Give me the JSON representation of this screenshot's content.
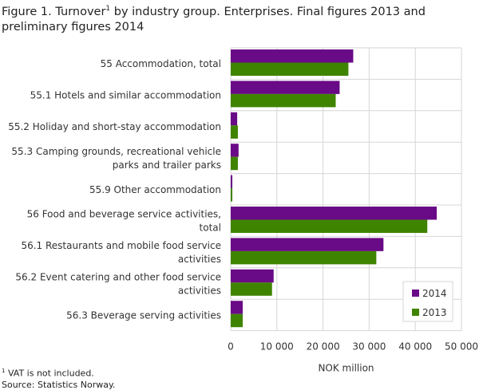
{
  "title_pre": "Figure 1. Turnover",
  "title_sup": "1",
  "title_post": " by industry group. Enterprises. Final figures 2013 and preliminary figures 2014",
  "footnote_sup": "1",
  "footnote": " VAT is not included.",
  "source": "Source: Statistics Norway.",
  "chart_data": {
    "type": "bar",
    "orientation": "horizontal",
    "title": "Figure 1. Turnover1 by industry group. Enterprises. Final figures 2013 and preliminary figures 2014",
    "xlabel": "NOK million",
    "xlim": [
      0,
      50000
    ],
    "xticks": [
      0,
      10000,
      20000,
      30000,
      40000,
      50000
    ],
    "xtick_labels": [
      "0",
      "10 000",
      "20 000",
      "30 000",
      "40 000",
      "50 000"
    ],
    "grid": true,
    "legend_position": "bottom-right",
    "categories": [
      [
        "55 Accommodation, total"
      ],
      [
        "55.1 Hotels and similar accommodation"
      ],
      [
        "55.2 Holiday and short-stay accommodation"
      ],
      [
        "55.3 Camping grounds, recreational vehicle",
        "parks and trailer parks"
      ],
      [
        "55.9 Other accommodation"
      ],
      [
        "56 Food and beverage service activities,",
        "total"
      ],
      [
        "56.1 Restaurants and mobile food service",
        "activities"
      ],
      [
        "56.2 Event catering and other food service",
        "activities"
      ],
      [
        "56.3 Beverage serving activities"
      ]
    ],
    "series": [
      {
        "name": "2014",
        "color": "#690a87",
        "values": [
          26550,
          23600,
          1400,
          1700,
          350,
          44650,
          33100,
          9300,
          2600
        ]
      },
      {
        "name": "2013",
        "color": "#3f8400",
        "values": [
          25500,
          22750,
          1550,
          1550,
          350,
          42600,
          31550,
          8950,
          2600
        ]
      }
    ]
  }
}
